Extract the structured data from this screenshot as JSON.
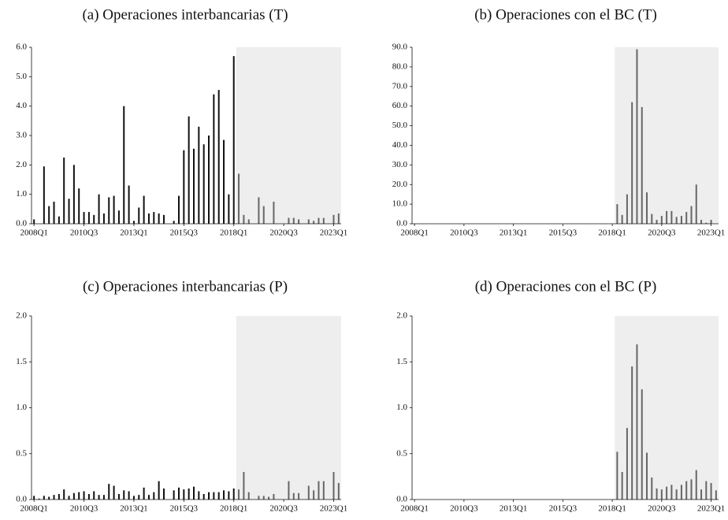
{
  "chart_data": [
    {
      "type": "bar",
      "title": "(a) Operaciones interbancarias (T)",
      "categories": [
        "2008Q1",
        null,
        null,
        null,
        null,
        null,
        null,
        null,
        null,
        null,
        "2010Q3",
        null,
        null,
        null,
        null,
        null,
        null,
        null,
        null,
        null,
        "2013Q1",
        null,
        null,
        null,
        null,
        null,
        null,
        null,
        null,
        null,
        "2015Q3",
        null,
        null,
        null,
        null,
        null,
        null,
        null,
        null,
        null,
        "2018Q1",
        null,
        null,
        null,
        null,
        null,
        null,
        null,
        null,
        null,
        "2020Q3",
        null,
        null,
        null,
        null,
        null,
        null,
        null,
        null,
        null,
        "2023Q1",
        null
      ],
      "values": [
        0.15,
        0,
        1.95,
        0.6,
        0.75,
        0.25,
        2.25,
        0.85,
        2.0,
        1.2,
        0.4,
        0.4,
        0.3,
        1.0,
        0.35,
        0.9,
        0.95,
        0.45,
        4.0,
        1.3,
        0.1,
        0.55,
        0.95,
        0.35,
        0.4,
        0.35,
        0.3,
        0,
        0.1,
        0.95,
        2.5,
        3.65,
        2.55,
        3.3,
        2.7,
        3.0,
        4.4,
        4.55,
        2.85,
        1.0,
        5.7,
        1.7,
        0.3,
        0.15,
        0,
        0.9,
        0.6,
        0,
        0.75,
        0,
        0,
        0.2,
        0.2,
        0.15,
        0,
        0.15,
        0.1,
        0.2,
        0.2,
        0,
        0.3,
        0.35
      ],
      "color": "#111111",
      "shaded_color": "#666666",
      "shade_color": "#eeeeee",
      "shade_from": 41,
      "ylim": [
        0,
        6
      ],
      "yticks": [
        {
          "value": 0,
          "label": "0.0"
        },
        {
          "value": 1,
          "label": "1.0"
        },
        {
          "value": 2,
          "label": "2.0"
        },
        {
          "value": 3,
          "label": "3.0"
        },
        {
          "value": 4,
          "label": "4.0"
        },
        {
          "value": 5,
          "label": "5.0"
        },
        {
          "value": 6,
          "label": "6.0"
        }
      ]
    },
    {
      "type": "bar",
      "title": "(b) Operaciones con el BC (T)",
      "categories": [
        "2008Q1",
        null,
        null,
        null,
        null,
        null,
        null,
        null,
        null,
        null,
        "2010Q3",
        null,
        null,
        null,
        null,
        null,
        null,
        null,
        null,
        null,
        "2013Q1",
        null,
        null,
        null,
        null,
        null,
        null,
        null,
        null,
        null,
        "2015Q3",
        null,
        null,
        null,
        null,
        null,
        null,
        null,
        null,
        null,
        "2018Q1",
        null,
        null,
        null,
        null,
        null,
        null,
        null,
        null,
        null,
        "2020Q3",
        null,
        null,
        null,
        null,
        null,
        null,
        null,
        null,
        null,
        "2023Q1",
        null
      ],
      "values": [
        0,
        0,
        0,
        0,
        0,
        0,
        0,
        0,
        0,
        0,
        0,
        0,
        0,
        0,
        0,
        0,
        0,
        0,
        0,
        0,
        0,
        0,
        0,
        0,
        0,
        0,
        0,
        0,
        0,
        0,
        0,
        0,
        0,
        0,
        0,
        0,
        0,
        0,
        0,
        0,
        0,
        10,
        4.5,
        15,
        62,
        89,
        59.5,
        16,
        5,
        2,
        4,
        6.5,
        6.5,
        3.5,
        4,
        6,
        9,
        20,
        2,
        0.5,
        2,
        0
      ],
      "color": "#111111",
      "shaded_color": "#666666",
      "shade_color": "#eeeeee",
      "shade_from": 41,
      "ylim": [
        0,
        90
      ],
      "yticks": [
        {
          "value": 0,
          "label": "0.0"
        },
        {
          "value": 10,
          "label": "10.0"
        },
        {
          "value": 20,
          "label": "20.0"
        },
        {
          "value": 30,
          "label": "30.0"
        },
        {
          "value": 40,
          "label": "40.0"
        },
        {
          "value": 50,
          "label": "50.0"
        },
        {
          "value": 60,
          "label": "60.0"
        },
        {
          "value": 70,
          "label": "70.0"
        },
        {
          "value": 80,
          "label": "80.0"
        },
        {
          "value": 90,
          "label": "90.0"
        }
      ]
    },
    {
      "type": "bar",
      "title": "(c) Operaciones interbancarias (P)",
      "categories": [
        "2008Q1",
        null,
        null,
        null,
        null,
        null,
        null,
        null,
        null,
        null,
        "2010Q3",
        null,
        null,
        null,
        null,
        null,
        null,
        null,
        null,
        null,
        "2013Q1",
        null,
        null,
        null,
        null,
        null,
        null,
        null,
        null,
        null,
        "2015Q3",
        null,
        null,
        null,
        null,
        null,
        null,
        null,
        null,
        null,
        "2018Q1",
        null,
        null,
        null,
        null,
        null,
        null,
        null,
        null,
        null,
        "2020Q3",
        null,
        null,
        null,
        null,
        null,
        null,
        null,
        null,
        null,
        "2023Q1",
        null
      ],
      "values": [
        0.04,
        0.01,
        0.04,
        0.03,
        0.05,
        0.06,
        0.11,
        0.04,
        0.07,
        0.08,
        0.09,
        0.06,
        0.09,
        0.05,
        0.05,
        0.17,
        0.15,
        0.06,
        0.1,
        0.09,
        0.04,
        0.05,
        0.13,
        0.05,
        0.08,
        0.2,
        0.12,
        0,
        0.1,
        0.13,
        0.11,
        0.12,
        0.14,
        0.09,
        0.06,
        0.08,
        0.08,
        0.08,
        0.1,
        0.09,
        0.12,
        0.11,
        0.3,
        0.08,
        0,
        0.04,
        0.04,
        0.03,
        0.06,
        0,
        0,
        0.2,
        0.07,
        0.07,
        0,
        0.15,
        0.1,
        0.2,
        0.2,
        0,
        0.3,
        0.18
      ],
      "color": "#111111",
      "shaded_color": "#666666",
      "shade_color": "#eeeeee",
      "shade_from": 41,
      "ylim": [
        0,
        2
      ],
      "yticks": [
        {
          "value": 0,
          "label": "0.0"
        },
        {
          "value": 0.5,
          "label": "0.5"
        },
        {
          "value": 1,
          "label": "1.0"
        },
        {
          "value": 1.5,
          "label": "1.5"
        },
        {
          "value": 2,
          "label": "2.0"
        }
      ]
    },
    {
      "type": "bar",
      "title": "(d) Operaciones con el BC (P)",
      "categories": [
        "2008Q1",
        null,
        null,
        null,
        null,
        null,
        null,
        null,
        null,
        null,
        "2010Q3",
        null,
        null,
        null,
        null,
        null,
        null,
        null,
        null,
        null,
        "2013Q1",
        null,
        null,
        null,
        null,
        null,
        null,
        null,
        null,
        null,
        "2015Q3",
        null,
        null,
        null,
        null,
        null,
        null,
        null,
        null,
        null,
        "2018Q1",
        null,
        null,
        null,
        null,
        null,
        null,
        null,
        null,
        null,
        "2020Q3",
        null,
        null,
        null,
        null,
        null,
        null,
        null,
        null,
        null,
        "2023Q1",
        null
      ],
      "values": [
        0,
        0,
        0,
        0,
        0,
        0,
        0,
        0,
        0,
        0,
        0,
        0,
        0,
        0,
        0,
        0,
        0,
        0,
        0,
        0,
        0,
        0,
        0,
        0,
        0,
        0,
        0,
        0,
        0,
        0,
        0,
        0,
        0,
        0,
        0,
        0,
        0,
        0,
        0,
        0,
        0,
        0.52,
        0.3,
        0.78,
        1.45,
        1.69,
        1.2,
        0.51,
        0.24,
        0.12,
        0.11,
        0.14,
        0.16,
        0.11,
        0.16,
        0.2,
        0.22,
        0.32,
        0.11,
        0.2,
        0.18,
        0.1
      ],
      "color": "#111111",
      "shaded_color": "#666666",
      "shade_color": "#eeeeee",
      "shade_from": 41,
      "ylim": [
        0,
        2
      ],
      "yticks": [
        {
          "value": 0,
          "label": "0.0"
        },
        {
          "value": 0.5,
          "label": "0.5"
        },
        {
          "value": 1,
          "label": "1.0"
        },
        {
          "value": 1.5,
          "label": "1.5"
        },
        {
          "value": 2,
          "label": "2.0"
        }
      ]
    }
  ]
}
